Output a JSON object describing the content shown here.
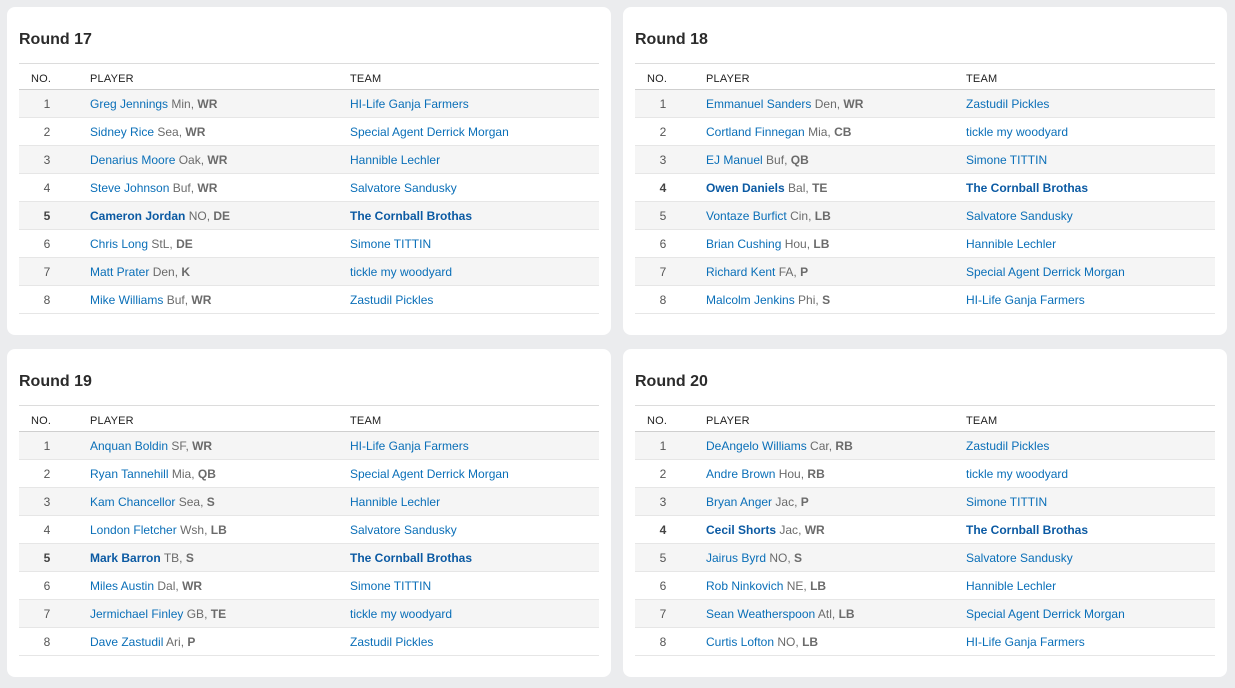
{
  "headers": {
    "no": "NO.",
    "player": "PLAYER",
    "team": "TEAM"
  },
  "rounds": [
    {
      "title": "Round 17",
      "picks": [
        {
          "no": "1",
          "player": "Greg Jennings",
          "nfl": "Min",
          "pos": "WR",
          "team": "HI-Life Ganja Farmers",
          "mine": false
        },
        {
          "no": "2",
          "player": "Sidney Rice",
          "nfl": "Sea",
          "pos": "WR",
          "team": "Special Agent Derrick Morgan",
          "mine": false
        },
        {
          "no": "3",
          "player": "Denarius Moore",
          "nfl": "Oak",
          "pos": "WR",
          "team": "Hannible Lechler",
          "mine": false
        },
        {
          "no": "4",
          "player": "Steve Johnson",
          "nfl": "Buf",
          "pos": "WR",
          "team": "Salvatore Sandusky",
          "mine": false
        },
        {
          "no": "5",
          "player": "Cameron Jordan",
          "nfl": "NO",
          "pos": "DE",
          "team": "The Cornball Brothas",
          "mine": true
        },
        {
          "no": "6",
          "player": "Chris Long",
          "nfl": "StL",
          "pos": "DE",
          "team": "Simone TITTIN",
          "mine": false
        },
        {
          "no": "7",
          "player": "Matt Prater",
          "nfl": "Den",
          "pos": "K",
          "team": "tickle my woodyard",
          "mine": false
        },
        {
          "no": "8",
          "player": "Mike Williams",
          "nfl": "Buf",
          "pos": "WR",
          "team": "Zastudil Pickles",
          "mine": false
        }
      ]
    },
    {
      "title": "Round 18",
      "picks": [
        {
          "no": "1",
          "player": "Emmanuel Sanders",
          "nfl": "Den",
          "pos": "WR",
          "team": "Zastudil Pickles",
          "mine": false
        },
        {
          "no": "2",
          "player": "Cortland Finnegan",
          "nfl": "Mia",
          "pos": "CB",
          "team": "tickle my woodyard",
          "mine": false
        },
        {
          "no": "3",
          "player": "EJ Manuel",
          "nfl": "Buf",
          "pos": "QB",
          "team": "Simone TITTIN",
          "mine": false
        },
        {
          "no": "4",
          "player": "Owen Daniels",
          "nfl": "Bal",
          "pos": "TE",
          "team": "The Cornball Brothas",
          "mine": true
        },
        {
          "no": "5",
          "player": "Vontaze Burfict",
          "nfl": "Cin",
          "pos": "LB",
          "team": "Salvatore Sandusky",
          "mine": false
        },
        {
          "no": "6",
          "player": "Brian Cushing",
          "nfl": "Hou",
          "pos": "LB",
          "team": "Hannible Lechler",
          "mine": false
        },
        {
          "no": "7",
          "player": "Richard Kent",
          "nfl": "FA",
          "pos": "P",
          "team": "Special Agent Derrick Morgan",
          "mine": false
        },
        {
          "no": "8",
          "player": "Malcolm Jenkins",
          "nfl": "Phi",
          "pos": "S",
          "team": "HI-Life Ganja Farmers",
          "mine": false
        }
      ]
    },
    {
      "title": "Round 19",
      "picks": [
        {
          "no": "1",
          "player": "Anquan Boldin",
          "nfl": "SF",
          "pos": "WR",
          "team": "HI-Life Ganja Farmers",
          "mine": false
        },
        {
          "no": "2",
          "player": "Ryan Tannehill",
          "nfl": "Mia",
          "pos": "QB",
          "team": "Special Agent Derrick Morgan",
          "mine": false
        },
        {
          "no": "3",
          "player": "Kam Chancellor",
          "nfl": "Sea",
          "pos": "S",
          "team": "Hannible Lechler",
          "mine": false
        },
        {
          "no": "4",
          "player": "London Fletcher",
          "nfl": "Wsh",
          "pos": "LB",
          "team": "Salvatore Sandusky",
          "mine": false
        },
        {
          "no": "5",
          "player": "Mark Barron",
          "nfl": "TB",
          "pos": "S",
          "team": "The Cornball Brothas",
          "mine": true
        },
        {
          "no": "6",
          "player": "Miles Austin",
          "nfl": "Dal",
          "pos": "WR",
          "team": "Simone TITTIN",
          "mine": false
        },
        {
          "no": "7",
          "player": "Jermichael Finley",
          "nfl": "GB",
          "pos": "TE",
          "team": "tickle my woodyard",
          "mine": false
        },
        {
          "no": "8",
          "player": "Dave Zastudil",
          "nfl": "Ari",
          "pos": "P",
          "team": "Zastudil Pickles",
          "mine": false
        }
      ]
    },
    {
      "title": "Round 20",
      "picks": [
        {
          "no": "1",
          "player": "DeAngelo Williams",
          "nfl": "Car",
          "pos": "RB",
          "team": "Zastudil Pickles",
          "mine": false
        },
        {
          "no": "2",
          "player": "Andre Brown",
          "nfl": "Hou",
          "pos": "RB",
          "team": "tickle my woodyard",
          "mine": false
        },
        {
          "no": "3",
          "player": "Bryan Anger",
          "nfl": "Jac",
          "pos": "P",
          "team": "Simone TITTIN",
          "mine": false
        },
        {
          "no": "4",
          "player": "Cecil Shorts",
          "nfl": "Jac",
          "pos": "WR",
          "team": "The Cornball Brothas",
          "mine": true
        },
        {
          "no": "5",
          "player": "Jairus Byrd",
          "nfl": "NO",
          "pos": "S",
          "team": "Salvatore Sandusky",
          "mine": false
        },
        {
          "no": "6",
          "player": "Rob Ninkovich",
          "nfl": "NE",
          "pos": "LB",
          "team": "Hannible Lechler",
          "mine": false
        },
        {
          "no": "7",
          "player": "Sean Weatherspoon",
          "nfl": "Atl",
          "pos": "LB",
          "team": "Special Agent Derrick Morgan",
          "mine": false
        },
        {
          "no": "8",
          "player": "Curtis Lofton",
          "nfl": "NO",
          "pos": "LB",
          "team": "HI-Life Ganja Farmers",
          "mine": false
        }
      ]
    }
  ]
}
